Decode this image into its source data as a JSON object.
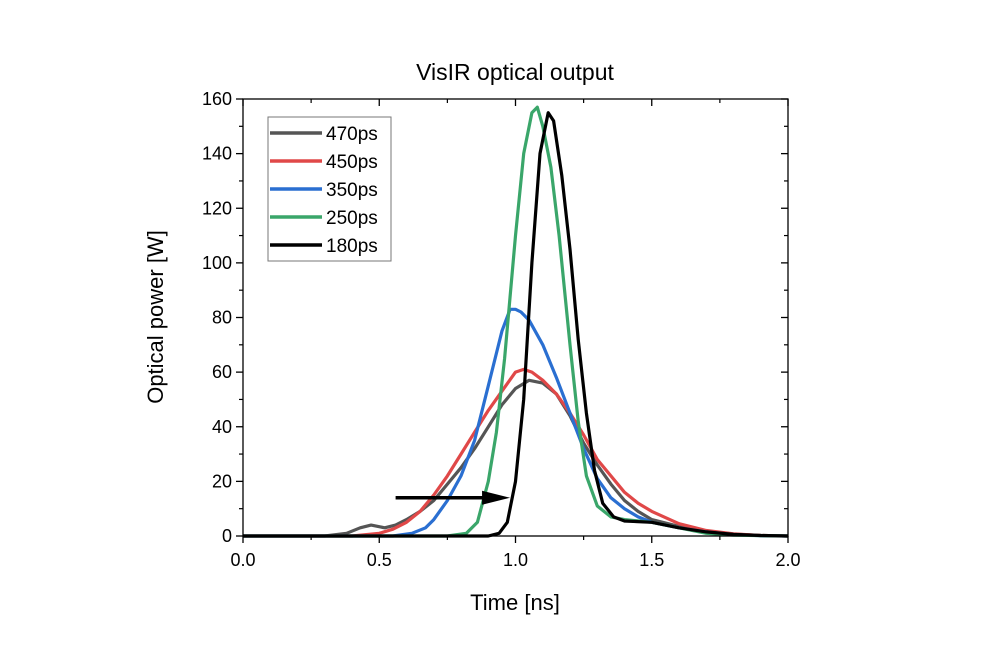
{
  "chart_data": {
    "type": "line",
    "title": "VisIR optical output",
    "xlabel": "Time [ns]",
    "ylabel": "Optical power [W]",
    "xlim": [
      0,
      2.0
    ],
    "ylim": [
      0,
      160
    ],
    "xticks": [
      "0.0",
      "0.5",
      "1.0",
      "1.5",
      "2.0"
    ],
    "yticks": [
      "0",
      "20",
      "40",
      "60",
      "80",
      "100",
      "120",
      "140",
      "160"
    ],
    "grid": false,
    "legend": "top-left",
    "annotation": {
      "type": "arrow",
      "from": [
        0.56,
        14
      ],
      "to": [
        0.98,
        14
      ]
    },
    "series": [
      {
        "name": "470ps",
        "color": "#555555",
        "x": [
          0,
          0.3,
          0.38,
          0.43,
          0.47,
          0.52,
          0.56,
          0.6,
          0.65,
          0.7,
          0.75,
          0.8,
          0.85,
          0.9,
          0.95,
          1.0,
          1.05,
          1.1,
          1.15,
          1.2,
          1.25,
          1.3,
          1.35,
          1.4,
          1.45,
          1.5,
          1.6,
          1.7,
          1.8,
          1.9,
          2.0
        ],
        "y": [
          0,
          0,
          1,
          3,
          4,
          3,
          4,
          6,
          9,
          13,
          19,
          25,
          32,
          40,
          48,
          54,
          57,
          56,
          52,
          44,
          34,
          26,
          19,
          13,
          9,
          6,
          3.5,
          1.8,
          0.7,
          0.2,
          0
        ]
      },
      {
        "name": "450ps",
        "color": "#e04848",
        "x": [
          0,
          0.4,
          0.5,
          0.55,
          0.6,
          0.65,
          0.7,
          0.75,
          0.8,
          0.85,
          0.9,
          0.95,
          1.0,
          1.03,
          1.06,
          1.1,
          1.15,
          1.2,
          1.25,
          1.3,
          1.35,
          1.4,
          1.45,
          1.5,
          1.6,
          1.7,
          1.8,
          1.9,
          2.0
        ],
        "y": [
          0,
          0,
          1,
          2.5,
          5,
          9,
          15,
          22,
          30,
          38,
          46,
          53,
          60,
          61,
          60,
          57,
          52,
          45,
          37,
          28,
          22,
          16,
          12,
          9,
          4.5,
          2,
          0.8,
          0.2,
          0
        ]
      },
      {
        "name": "350ps",
        "color": "#2a6fd1",
        "x": [
          0,
          0.55,
          0.62,
          0.67,
          0.7,
          0.75,
          0.8,
          0.85,
          0.9,
          0.95,
          0.98,
          1.0,
          1.02,
          1.05,
          1.1,
          1.15,
          1.2,
          1.25,
          1.3,
          1.35,
          1.4,
          1.45,
          1.5,
          1.6,
          1.7,
          1.8,
          1.9,
          2.0
        ],
        "y": [
          0,
          0,
          1,
          3,
          6,
          13,
          22,
          35,
          55,
          75,
          83,
          83,
          82,
          79,
          70,
          58,
          45,
          32,
          21,
          14,
          10,
          7,
          5,
          3,
          1.5,
          0.5,
          0.1,
          0
        ]
      },
      {
        "name": "250ps",
        "color": "#3aa66a",
        "x": [
          0,
          0.75,
          0.82,
          0.86,
          0.9,
          0.93,
          0.96,
          1.0,
          1.03,
          1.06,
          1.08,
          1.1,
          1.13,
          1.16,
          1.2,
          1.23,
          1.26,
          1.3,
          1.35,
          1.4,
          1.5,
          1.6,
          1.7,
          1.8,
          2.0
        ],
        "y": [
          0,
          0,
          1,
          5,
          20,
          38,
          65,
          110,
          140,
          155,
          157,
          150,
          135,
          110,
          70,
          42,
          22,
          11,
          7,
          6,
          5,
          3,
          1,
          0.3,
          0
        ]
      },
      {
        "name": "180ps",
        "color": "#000000",
        "x": [
          0,
          0.9,
          0.94,
          0.97,
          1.0,
          1.03,
          1.06,
          1.09,
          1.12,
          1.14,
          1.17,
          1.2,
          1.23,
          1.26,
          1.29,
          1.32,
          1.36,
          1.4,
          1.5,
          1.6,
          1.7,
          1.8,
          1.9,
          2.0
        ],
        "y": [
          0,
          0,
          1,
          5,
          20,
          50,
          100,
          140,
          155,
          152,
          132,
          105,
          72,
          45,
          24,
          12,
          7,
          5.5,
          5,
          3,
          1.5,
          0.6,
          0.2,
          0
        ]
      }
    ]
  }
}
